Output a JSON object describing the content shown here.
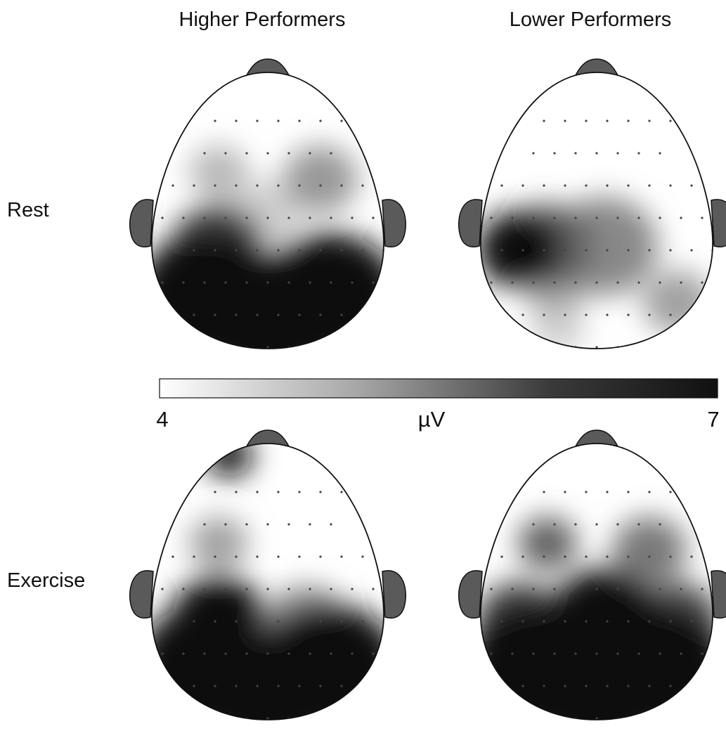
{
  "columns": [
    "Higher Performers",
    "Lower Performers"
  ],
  "rows": [
    "Rest",
    "Exercise"
  ],
  "colorbar": {
    "min_label": "4",
    "max_label": "7",
    "unit": "µV",
    "min_value": 4,
    "max_value": 7,
    "low_color": "#ffffff",
    "high_color": "#111111"
  },
  "colors": {
    "ear_nose_fill": "#5a5a5a",
    "outline": "#111111",
    "electrode": "#444444"
  },
  "maps": [
    {
      "row": "Rest",
      "column": "Higher Performers",
      "blobs": [
        {
          "site": "posterior-left",
          "value": 7.0
        },
        {
          "site": "posterior-right",
          "value": 7.0
        },
        {
          "site": "occipital",
          "value": 7.0
        },
        {
          "site": "central-left",
          "value": 6.4
        },
        {
          "site": "frontal-left",
          "value": 4.9
        },
        {
          "site": "frontal-right",
          "value": 5.3
        },
        {
          "site": "central-midline",
          "value": 4.6
        }
      ]
    },
    {
      "row": "Rest",
      "column": "Lower Performers",
      "blobs": [
        {
          "site": "temporal-left",
          "value": 7.0
        },
        {
          "site": "central-left",
          "value": 6.0
        },
        {
          "site": "central",
          "value": 5.5
        },
        {
          "site": "parietal-left",
          "value": 5.1
        },
        {
          "site": "occipital-left",
          "value": 4.6
        },
        {
          "site": "posterior-right-edge",
          "value": 5.2
        }
      ]
    },
    {
      "row": "Exercise",
      "column": "Higher Performers",
      "blobs": [
        {
          "site": "posterior-left",
          "value": 7.0
        },
        {
          "site": "posterior-right",
          "value": 7.0
        },
        {
          "site": "occipital",
          "value": 7.0
        },
        {
          "site": "central-left",
          "value": 7.0
        },
        {
          "site": "central-right",
          "value": 5.4
        },
        {
          "site": "frontal-left",
          "value": 5.2
        },
        {
          "site": "prefrontal-left-edge",
          "value": 7.0
        }
      ]
    },
    {
      "row": "Exercise",
      "column": "Lower Performers",
      "blobs": [
        {
          "site": "posterior-left",
          "value": 7.0
        },
        {
          "site": "posterior-right",
          "value": 7.0
        },
        {
          "site": "occipital",
          "value": 7.0
        },
        {
          "site": "central",
          "value": 7.0
        },
        {
          "site": "frontal-left",
          "value": 6.0
        },
        {
          "site": "frontal-right",
          "value": 5.7
        },
        {
          "site": "temporal-left",
          "value": 6.4
        },
        {
          "site": "temporal-right",
          "value": 6.2
        }
      ]
    }
  ]
}
